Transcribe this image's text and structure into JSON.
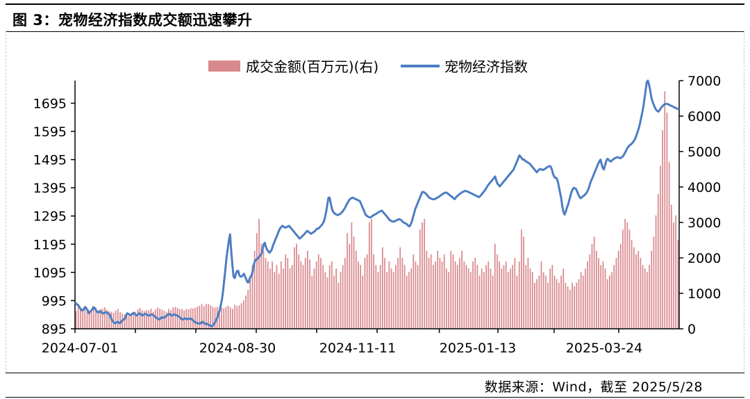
{
  "header": {
    "title": "图 3：宠物经济指数成交额迅速攀升"
  },
  "footer": {
    "source": "数据来源：Wind，截至 2025/5/28"
  },
  "chart_data": {
    "type": "bar+line",
    "title": "",
    "legend_position": "top-center",
    "x_labels": [
      "2024-07-01",
      "2024-08-30",
      "2024-11-11",
      "2025-01-13",
      "2025-03-24"
    ],
    "y_left": {
      "ticks": [
        895,
        995,
        1095,
        1195,
        1295,
        1395,
        1495,
        1595,
        1695
      ],
      "range": [
        895,
        1775
      ]
    },
    "y_right": {
      "ticks": [
        0,
        1000,
        2000,
        3000,
        4000,
        5000,
        6000,
        7000
      ],
      "range": [
        0,
        7000
      ]
    },
    "colors": {
      "bar": "#d9898e",
      "line": "#4c7dc2",
      "axis": "#000000"
    },
    "grid": false,
    "series": [
      {
        "name": "成交金额(百万元)(右)",
        "axis": "right",
        "kind": "bar",
        "values": [
          500,
          700,
          600,
          520,
          650,
          540,
          460,
          490,
          560,
          600,
          520,
          550,
          570,
          610,
          540,
          500,
          480,
          450,
          510,
          560,
          470,
          430,
          400,
          380,
          360,
          400,
          420,
          460,
          550,
          590,
          520,
          500,
          530,
          520,
          570,
          480,
          550,
          600,
          570,
          540,
          510,
          470,
          560,
          520,
          600,
          620,
          590,
          550,
          560,
          520,
          560,
          550,
          580,
          570,
          590,
          620,
          650,
          700,
          640,
          700,
          700,
          660,
          620,
          600,
          620,
          560,
          600,
          580,
          620,
          650,
          600,
          560,
          680,
          640,
          660,
          720,
          800,
          940,
          1100,
          1500,
          1800,
          2200,
          2700,
          3100,
          2400,
          2200,
          2000,
          1900,
          1700,
          1900,
          1600,
          1800,
          1550,
          1900,
          1700,
          2100,
          2000,
          1700,
          1800,
          2300,
          2400,
          2100,
          1900,
          1800,
          2000,
          2200,
          1950,
          1500,
          1700,
          1900,
          2100,
          2000,
          1800,
          1600,
          1450,
          1800,
          1900,
          1500,
          1700,
          1300,
          1600,
          1800,
          2000,
          2700,
          2400,
          3000,
          2600,
          2200,
          1900,
          1800,
          1500,
          2000,
          2100,
          3000,
          3100,
          2100,
          1800,
          1600,
          1800,
          2300,
          2000,
          1600,
          1900,
          1700,
          1600,
          1800,
          2000,
          2300,
          2000,
          1800,
          1500,
          1600,
          1700,
          2100,
          1900,
          1800,
          2800,
          3000,
          3100,
          2200,
          2000,
          2100,
          1800,
          1900,
          2200,
          2000,
          1900,
          2100,
          1700,
          1600,
          2200,
          2100,
          1900,
          1800,
          2000,
          2200,
          1900,
          1800,
          1700,
          1600,
          1900,
          2000,
          1800,
          1500,
          1700,
          1600,
          1800,
          1900,
          1700,
          1500,
          2400,
          2100,
          1900,
          1700,
          1800,
          1900,
          1600,
          1700,
          1800,
          2000,
          1500,
          1900,
          2800,
          2600,
          1800,
          2000,
          1700,
          1600,
          1300,
          1400,
          1500,
          1900,
          1600,
          1500,
          1300,
          1700,
          1800,
          1500,
          1400,
          1300,
          1500,
          1700,
          1300,
          1200,
          1100,
          1300,
          1200,
          1300,
          1400,
          1600,
          1500,
          1700,
          1900,
          2100,
          2400,
          2600,
          2200,
          2000,
          1800,
          1900,
          1700,
          1400,
          1500,
          1600,
          1800,
          2000,
          2200,
          2400,
          2800,
          3100,
          3000,
          2800,
          2500,
          2300,
          2100,
          2200,
          2000,
          1800,
          1700,
          1600,
          1800,
          2200,
          2600,
          3200,
          3800,
          4600,
          5600,
          6700,
          6100,
          4700,
          3500,
          3000,
          3200,
          2500
        ]
      },
      {
        "name": "宠物经济指数",
        "axis": "left",
        "kind": "line",
        "values": [
          988,
          985,
          980,
          978,
          970,
          965,
          960,
          962,
          968,
          972,
          966,
          960,
          950,
          955,
          958,
          965,
          972,
          968,
          962,
          955,
          953,
          955,
          958,
          952,
          950,
          950,
          953,
          954,
          951,
          948,
          945,
          935,
          925,
          920,
          915,
          915,
          918,
          920,
          916,
          915,
          921,
          925,
          928,
          930,
          940,
          950,
          948,
          945,
          943,
          947,
          950,
          952,
          946,
          942,
          944,
          948,
          950,
          946,
          942,
          944,
          946,
          948,
          945,
          943,
          941,
          944,
          946,
          945,
          942,
          938,
          936,
          932,
          930,
          928,
          932,
          936,
          935,
          934,
          938,
          940,
          944,
          948,
          946,
          943,
          942,
          945,
          946,
          944,
          942,
          940,
          938,
          934,
          930,
          928,
          930,
          932,
          930,
          929,
          931,
          930,
          932,
          928,
          925,
          920,
          918,
          916,
          915,
          914,
          913,
          917,
          920,
          916,
          915,
          912,
          913,
          910,
          908,
          906,
          904,
          906,
          912,
          918,
          926,
          935,
          950,
          960,
          980,
          1000,
          1030,
          1070,
          1110,
          1150,
          1180,
          1210,
          1230,
          1170,
          1120,
          1080,
          1075,
          1090,
          1100,
          1100,
          1085,
          1080,
          1080,
          1085,
          1090,
          1080,
          1070,
          1060,
          1060,
          1075,
          1080,
          1090,
          1110,
          1130,
          1140,
          1140,
          1145,
          1150,
          1155,
          1160,
          1175,
          1195,
          1200,
          1185,
          1175,
          1170,
          1165,
          1170,
          1175,
          1190,
          1200,
          1210,
          1220,
          1230,
          1240,
          1250,
          1255,
          1260,
          1258,
          1255,
          1254,
          1256,
          1258,
          1260,
          1255,
          1250,
          1245,
          1240,
          1235,
          1230,
          1225,
          1220,
          1215,
          1218,
          1222,
          1226,
          1230,
          1235,
          1240,
          1242,
          1238,
          1235,
          1232,
          1235,
          1238,
          1240,
          1245,
          1250,
          1250,
          1253,
          1258,
          1262,
          1268,
          1275,
          1290,
          1310,
          1335,
          1360,
          1360,
          1340,
          1320,
          1310,
          1305,
          1302,
          1300,
          1298,
          1300,
          1302,
          1306,
          1310,
          1316,
          1322,
          1330,
          1338,
          1345,
          1352,
          1356,
          1359,
          1360,
          1358,
          1356,
          1354,
          1352,
          1350,
          1348,
          1340,
          1330,
          1320,
          1310,
          1300,
          1296,
          1293,
          1291,
          1290,
          1292,
          1295,
          1298,
          1300,
          1302,
          1305,
          1308,
          1310,
          1312,
          1314,
          1310,
          1305,
          1300,
          1296,
          1290,
          1285,
          1280,
          1278,
          1276,
          1275,
          1276,
          1278,
          1280,
          1282,
          1284,
          1282,
          1280,
          1275,
          1272,
          1270,
          1268,
          1265,
          1260,
          1258,
          1265,
          1275,
          1290,
          1305,
          1320,
          1330,
          1340,
          1350,
          1360,
          1370,
          1380,
          1380,
          1378,
          1375,
          1370,
          1365,
          1360,
          1358,
          1356,
          1355,
          1354,
          1355,
          1358,
          1360,
          1362,
          1365,
          1368,
          1371,
          1374,
          1376,
          1378,
          1378,
          1375,
          1372,
          1368,
          1365,
          1362,
          1358,
          1355,
          1360,
          1365,
          1368,
          1372,
          1375,
          1378,
          1380,
          1382,
          1384,
          1383,
          1382,
          1380,
          1378,
          1376,
          1374,
          1372,
          1370,
          1368,
          1366,
          1364,
          1362,
          1365,
          1370,
          1375,
          1380,
          1385,
          1392,
          1398,
          1405,
          1410,
          1415,
          1420,
          1425,
          1430,
          1435,
          1420,
          1410,
          1405,
          1400,
          1405,
          1410,
          1415,
          1420,
          1425,
          1430,
          1435,
          1440,
          1445,
          1450,
          1455,
          1460,
          1470,
          1480,
          1490,
          1500,
          1510,
          1505,
          1500,
          1495,
          1495,
          1490,
          1488,
          1485,
          1483,
          1480,
          1475,
          1470,
          1465,
          1460,
          1455,
          1450,
          1455,
          1460,
          1462,
          1460,
          1458,
          1460,
          1462,
          1465,
          1468,
          1470,
          1472,
          1470,
          1460,
          1445,
          1435,
          1430,
          1430,
          1420,
          1400,
          1380,
          1360,
          1330,
          1310,
          1300,
          1310,
          1325,
          1335,
          1350,
          1365,
          1380,
          1390,
          1395,
          1393,
          1390,
          1380,
          1370,
          1362,
          1358,
          1362,
          1365,
          1368,
          1372,
          1378,
          1385,
          1395,
          1410,
          1420,
          1430,
          1440,
          1450,
          1460,
          1470,
          1480,
          1488,
          1495,
          1480,
          1465,
          1460,
          1475,
          1490,
          1498,
          1495,
          1490,
          1488,
          1492,
          1496,
          1499,
          1501,
          1503,
          1503,
          1502,
          1500,
          1502,
          1505,
          1510,
          1518,
          1525,
          1535,
          1540,
          1545,
          1548,
          1552,
          1556,
          1562,
          1570,
          1580,
          1592,
          1605,
          1620,
          1640,
          1660,
          1680,
          1710,
          1740,
          1770,
          1775,
          1760,
          1740,
          1715,
          1700,
          1690,
          1680,
          1672,
          1668,
          1665,
          1670,
          1676,
          1682,
          1686,
          1690,
          1692,
          1693,
          1692,
          1690,
          1688,
          1686,
          1684,
          1682,
          1680,
          1678,
          1676,
          1675,
          1674
        ]
      }
    ]
  }
}
